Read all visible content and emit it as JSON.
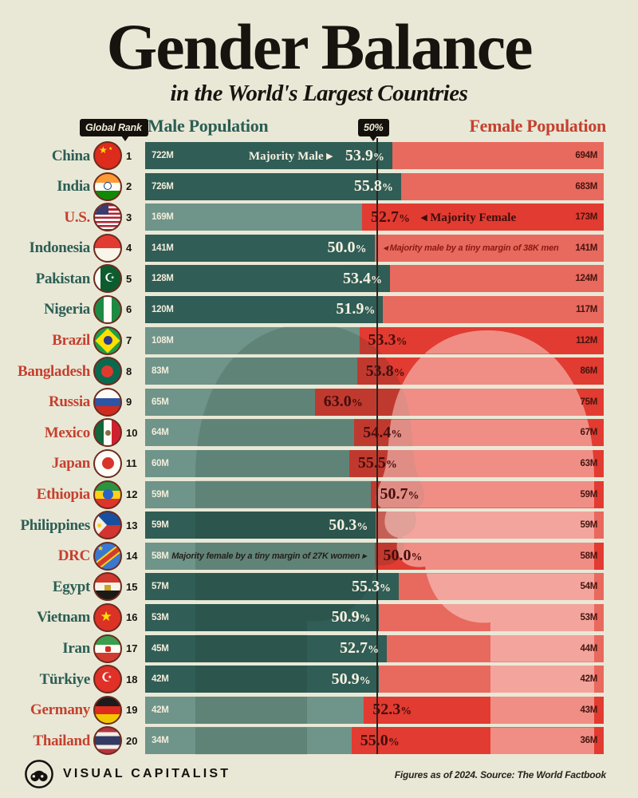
{
  "title": "Gender Balance",
  "subtitle": "in the World's Largest Countries",
  "header": {
    "global_rank_label": "Global Rank",
    "male_label": "Male Population",
    "center_label": "50%",
    "female_label": "Female Population"
  },
  "footer": {
    "brand": "VISUAL CAPITALIST",
    "note": "Figures as of 2024. Source: The World Factbook"
  },
  "colors": {
    "background": "#e9e8d6",
    "male_dark_teal": "#305d55",
    "male_light_teal": "#6f9489",
    "female_bright_red": "#e23b31",
    "female_salmon": "#e8695e",
    "male_text": "#2c5e55",
    "female_text": "#c5402f",
    "value_dark": "#44150f",
    "badge_black": "#14110d"
  },
  "chart_data": {
    "type": "bar",
    "title": "Gender Balance in the World's Largest Countries",
    "orientation": "horizontal",
    "center_marker": "50%",
    "left_axis_label": "Male Population",
    "right_axis_label": "Female Population",
    "unit": "M = million people",
    "rows": [
      {
        "rank": 1,
        "country": "China",
        "flag": "china",
        "majority": "male",
        "male_value": "722M",
        "female_value": "694M",
        "pct": 53.9,
        "annotation": {
          "text": "Majority Male ▸",
          "style": "major",
          "side": "male"
        }
      },
      {
        "rank": 2,
        "country": "India",
        "flag": "india",
        "majority": "male",
        "male_value": "726M",
        "female_value": "683M",
        "pct": 55.8,
        "annotation": null
      },
      {
        "rank": 3,
        "country": "U.S.",
        "flag": "us",
        "majority": "female",
        "male_value": "169M",
        "female_value": "173M",
        "pct": 52.7,
        "annotation": {
          "text": "◂ Majority Female",
          "style": "major",
          "side": "female"
        }
      },
      {
        "rank": 4,
        "country": "Indonesia",
        "flag": "indonesia",
        "majority": "male",
        "male_value": "141M",
        "female_value": "141M",
        "pct": 50.0,
        "annotation": {
          "text": "◂ Majority male by a tiny margin of 38K men",
          "style": "minor",
          "side": "female"
        }
      },
      {
        "rank": 5,
        "country": "Pakistan",
        "flag": "pakistan",
        "majority": "male",
        "male_value": "128M",
        "female_value": "124M",
        "pct": 53.4,
        "annotation": null
      },
      {
        "rank": 6,
        "country": "Nigeria",
        "flag": "nigeria",
        "majority": "male",
        "male_value": "120M",
        "female_value": "117M",
        "pct": 51.9,
        "annotation": null
      },
      {
        "rank": 7,
        "country": "Brazil",
        "flag": "brazil",
        "majority": "female",
        "male_value": "108M",
        "female_value": "112M",
        "pct": 53.3,
        "annotation": null
      },
      {
        "rank": 8,
        "country": "Bangladesh",
        "flag": "bangladesh",
        "majority": "female",
        "male_value": "83M",
        "female_value": "86M",
        "pct": 53.8,
        "annotation": null
      },
      {
        "rank": 9,
        "country": "Russia",
        "flag": "russia",
        "majority": "female",
        "male_value": "65M",
        "female_value": "75M",
        "pct": 63.0,
        "annotation": null
      },
      {
        "rank": 10,
        "country": "Mexico",
        "flag": "mexico",
        "majority": "female",
        "male_value": "64M",
        "female_value": "67M",
        "pct": 54.4,
        "annotation": null
      },
      {
        "rank": 11,
        "country": "Japan",
        "flag": "japan",
        "majority": "female",
        "male_value": "60M",
        "female_value": "63M",
        "pct": 55.5,
        "annotation": null
      },
      {
        "rank": 12,
        "country": "Ethiopia",
        "flag": "ethiopia",
        "majority": "female",
        "male_value": "59M",
        "female_value": "59M",
        "pct": 50.7,
        "annotation": null
      },
      {
        "rank": 13,
        "country": "Philippines",
        "flag": "philippines",
        "majority": "male",
        "male_value": "59M",
        "female_value": "59M",
        "pct": 50.3,
        "annotation": null
      },
      {
        "rank": 14,
        "country": "DRC",
        "flag": "drc",
        "majority": "female",
        "male_value": "58M",
        "female_value": "58M",
        "pct": 50.0,
        "annotation": {
          "text": "Majority female by a tiny margin of 27K women ▸",
          "style": "minor",
          "side": "male"
        }
      },
      {
        "rank": 15,
        "country": "Egypt",
        "flag": "egypt",
        "majority": "male",
        "male_value": "57M",
        "female_value": "54M",
        "pct": 55.3,
        "annotation": null
      },
      {
        "rank": 16,
        "country": "Vietnam",
        "flag": "vietnam",
        "majority": "male",
        "male_value": "53M",
        "female_value": "53M",
        "pct": 50.9,
        "annotation": null
      },
      {
        "rank": 17,
        "country": "Iran",
        "flag": "iran",
        "majority": "male",
        "male_value": "45M",
        "female_value": "44M",
        "pct": 52.7,
        "annotation": null
      },
      {
        "rank": 18,
        "country": "Türkiye",
        "flag": "turkiye",
        "majority": "male",
        "male_value": "42M",
        "female_value": "42M",
        "pct": 50.9,
        "annotation": null
      },
      {
        "rank": 19,
        "country": "Germany",
        "flag": "germany",
        "majority": "female",
        "male_value": "42M",
        "female_value": "43M",
        "pct": 52.3,
        "annotation": null
      },
      {
        "rank": 20,
        "country": "Thailand",
        "flag": "thailand",
        "majority": "female",
        "male_value": "34M",
        "female_value": "36M",
        "pct": 55.0,
        "annotation": null
      }
    ]
  }
}
